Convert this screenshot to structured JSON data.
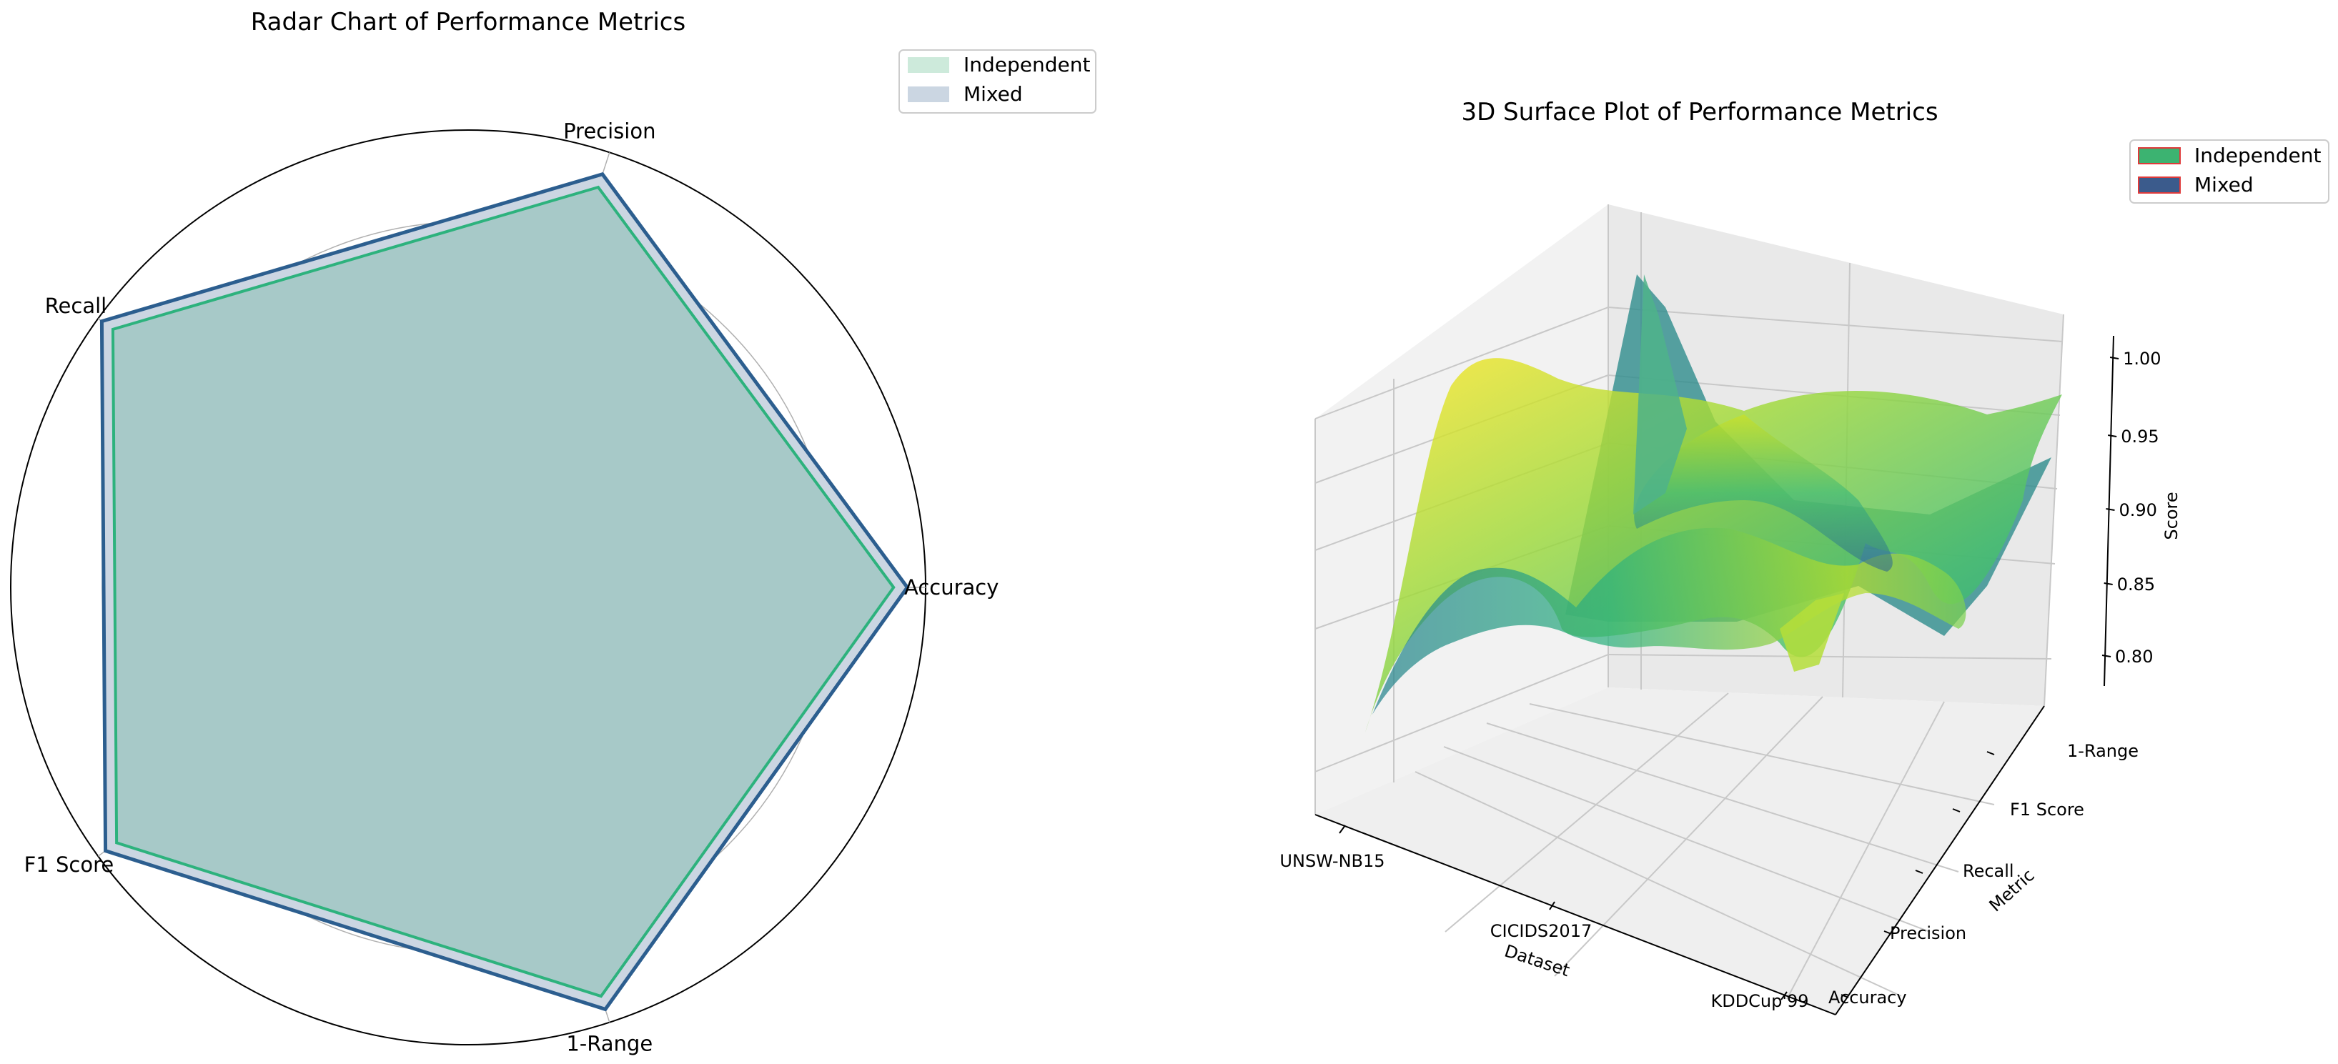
{
  "chart_data": [
    {
      "type": "radar",
      "title": "Radar Chart of Performance Metrics",
      "axes": [
        "Accuracy",
        "Precision",
        "Recall",
        "F1 Score",
        "1-Range"
      ],
      "rlim": [
        0,
        1
      ],
      "rgrid": [
        0.2,
        0.4,
        0.6,
        0.8
      ],
      "legend_position": "upper-right outside",
      "series": [
        {
          "name": "Independent",
          "values": [
            0.93,
            0.92,
            0.96,
            0.95,
            0.94
          ],
          "color": "#2db27d"
        },
        {
          "name": "Mixed",
          "values": [
            0.96,
            0.95,
            0.99,
            0.98,
            0.97
          ],
          "color": "#2c5e8f"
        }
      ]
    },
    {
      "type": "surface3d",
      "title": "3D Surface Plot of Performance Metrics",
      "xlabel": "Dataset",
      "ylabel": "Metric",
      "zlabel": "Score",
      "x_ticks": [
        "UNSW-NB15",
        "CICIDS2017",
        "KDDCup'99"
      ],
      "y_ticks": [
        "Accuracy",
        "Precision",
        "Recall",
        "F1 Score",
        "1-Range"
      ],
      "z_ticks": [
        "0.80",
        "0.85",
        "0.90",
        "0.95",
        "1.00"
      ],
      "zlim": [
        0.78,
        1.01
      ],
      "colormap": "viridis",
      "legend_position": "upper-right outside",
      "series": [
        {
          "name": "Independent",
          "color": "#3cb371",
          "edge": "#e03a3a"
        },
        {
          "name": "Mixed",
          "color": "#3b5b8c",
          "edge": "#e03a3a"
        }
      ]
    }
  ]
}
